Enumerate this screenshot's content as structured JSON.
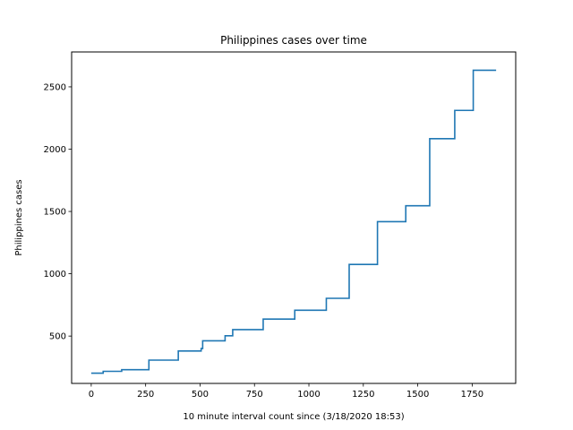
{
  "chart_data": {
    "type": "line",
    "title": "Philippines cases over time",
    "xlabel": "10 minute interval count since (3/18/2020 18:53)",
    "ylabel": "Philippines cases",
    "xlim": [
      -90,
      1950
    ],
    "ylim": [
      120,
      2780
    ],
    "xticks": [
      0,
      250,
      500,
      750,
      1000,
      1250,
      1500,
      1750
    ],
    "yticks": [
      500,
      1000,
      1500,
      2000,
      2500
    ],
    "grid": false,
    "legend": "none",
    "series": [
      {
        "color": "#1f77b4",
        "step": "post",
        "x": [
          0,
          55,
          140,
          265,
          400,
          505,
          512,
          615,
          650,
          790,
          935,
          1080,
          1185,
          1315,
          1445,
          1555,
          1670,
          1755,
          1860
        ],
        "y": [
          202,
          217,
          230,
          307,
          380,
          400,
          462,
          502,
          552,
          636,
          707,
          803,
          1075,
          1418,
          1546,
          2084,
          2311,
          2633,
          2633
        ]
      }
    ]
  }
}
